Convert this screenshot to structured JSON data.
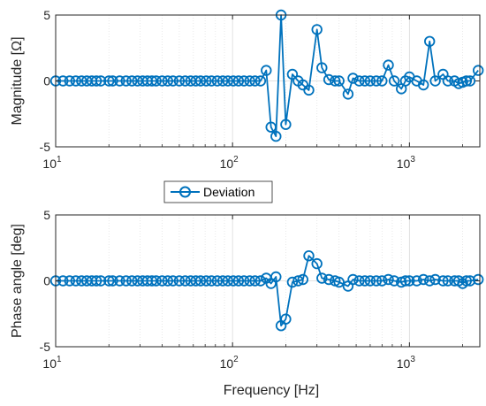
{
  "colors": {
    "series": "#0072BD",
    "axes": "#262626",
    "grid": "#cfcfcf"
  },
  "legend": {
    "placement": "between-plots"
  },
  "chart_data": [
    {
      "type": "line",
      "xscale": "log",
      "xlim": [
        10,
        2500
      ],
      "ylim": [
        -5,
        5
      ],
      "xticks": [
        10,
        100,
        1000
      ],
      "xtick_labels": [
        {
          "base": "10",
          "exp": "1"
        },
        {
          "base": "10",
          "exp": "2"
        },
        {
          "base": "10",
          "exp": "3"
        }
      ],
      "yticks": [
        {
          "value": 5,
          "label": "5"
        },
        {
          "value": 0,
          "label": "0"
        },
        {
          "value": -5,
          "label": "-5"
        }
      ],
      "ylabel": "Magnitude [Ω]",
      "xlabel": "",
      "grid": true,
      "series": [
        {
          "name": "Deviation",
          "x": [
            10,
            11,
            12,
            13,
            14,
            15,
            16,
            17,
            18,
            20,
            21,
            23,
            25,
            27,
            29,
            31,
            33,
            35,
            37,
            40,
            43,
            46,
            50,
            54,
            58,
            62,
            66,
            71,
            76,
            82,
            88,
            94,
            101,
            108,
            116,
            125,
            134,
            144,
            155,
            165,
            176,
            188,
            200,
            218,
            235,
            250,
            270,
            300,
            320,
            350,
            380,
            400,
            450,
            480,
            520,
            560,
            600,
            650,
            700,
            760,
            820,
            900,
            950,
            1000,
            1100,
            1200,
            1300,
            1400,
            1550,
            1650,
            1800,
            1900,
            2000,
            2100,
            2200,
            2450
          ],
          "values": [
            0,
            0,
            0,
            0,
            0,
            0,
            0,
            0,
            0,
            0,
            0,
            0,
            0,
            0,
            0,
            0,
            0,
            0,
            0,
            0,
            0,
            0,
            0,
            0,
            0,
            0,
            0,
            0,
            0,
            0,
            0,
            0,
            0,
            0,
            0,
            0,
            0,
            0,
            0.8,
            -3.5,
            -4.2,
            5.0,
            -3.3,
            0.5,
            0.0,
            -0.3,
            -0.7,
            3.9,
            1.0,
            0.1,
            0.0,
            0.0,
            -1.0,
            0.2,
            0.0,
            0.0,
            0.0,
            0.0,
            0.0,
            1.2,
            0.0,
            -0.6,
            0.0,
            0.3,
            0.0,
            -0.3,
            3.0,
            0.0,
            0.5,
            0.0,
            0.0,
            -0.2,
            -0.1,
            0.0,
            0.0,
            0.8
          ]
        }
      ]
    },
    {
      "type": "line",
      "xscale": "log",
      "xlim": [
        10,
        2500
      ],
      "ylim": [
        -5,
        5
      ],
      "xticks": [
        10,
        100,
        1000
      ],
      "xtick_labels": [
        {
          "base": "10",
          "exp": "1"
        },
        {
          "base": "10",
          "exp": "2"
        },
        {
          "base": "10",
          "exp": "3"
        }
      ],
      "yticks": [
        {
          "value": 5,
          "label": "5"
        },
        {
          "value": 0,
          "label": "0"
        },
        {
          "value": -5,
          "label": "-5"
        }
      ],
      "ylabel": "Phase angle [deg]",
      "xlabel": "Frequency [Hz]",
      "grid": true,
      "series": [
        {
          "name": "Deviation",
          "x": [
            10,
            11,
            12,
            13,
            14,
            15,
            16,
            17,
            18,
            20,
            21,
            23,
            25,
            27,
            29,
            31,
            33,
            35,
            37,
            40,
            43,
            46,
            50,
            54,
            58,
            62,
            66,
            71,
            76,
            82,
            88,
            94,
            101,
            108,
            116,
            125,
            134,
            144,
            155,
            165,
            176,
            188,
            200,
            218,
            235,
            250,
            270,
            300,
            320,
            350,
            380,
            400,
            450,
            480,
            520,
            560,
            600,
            650,
            700,
            760,
            820,
            900,
            950,
            1000,
            1100,
            1200,
            1300,
            1400,
            1550,
            1650,
            1800,
            1900,
            2000,
            2100,
            2200,
            2450
          ],
          "values": [
            0,
            0,
            0,
            0,
            0,
            0,
            0,
            0,
            0,
            0,
            0,
            0,
            0,
            0,
            0,
            0,
            0,
            0,
            0,
            0,
            0,
            0,
            0,
            0,
            0,
            0,
            0,
            0,
            0,
            0,
            0,
            0,
            0,
            0,
            0,
            0,
            0,
            0,
            0.2,
            -0.2,
            0.3,
            -3.4,
            -2.9,
            -0.1,
            0.0,
            0.1,
            1.9,
            1.3,
            0.2,
            0.1,
            0.0,
            -0.1,
            -0.4,
            0.1,
            0.0,
            0.0,
            0.0,
            0.0,
            0.0,
            0.1,
            0.0,
            -0.1,
            0.0,
            0.0,
            0.0,
            0.1,
            0.0,
            0.1,
            0.0,
            0.0,
            0.0,
            0.0,
            -0.2,
            0.0,
            0.0,
            0.1
          ]
        }
      ]
    }
  ]
}
